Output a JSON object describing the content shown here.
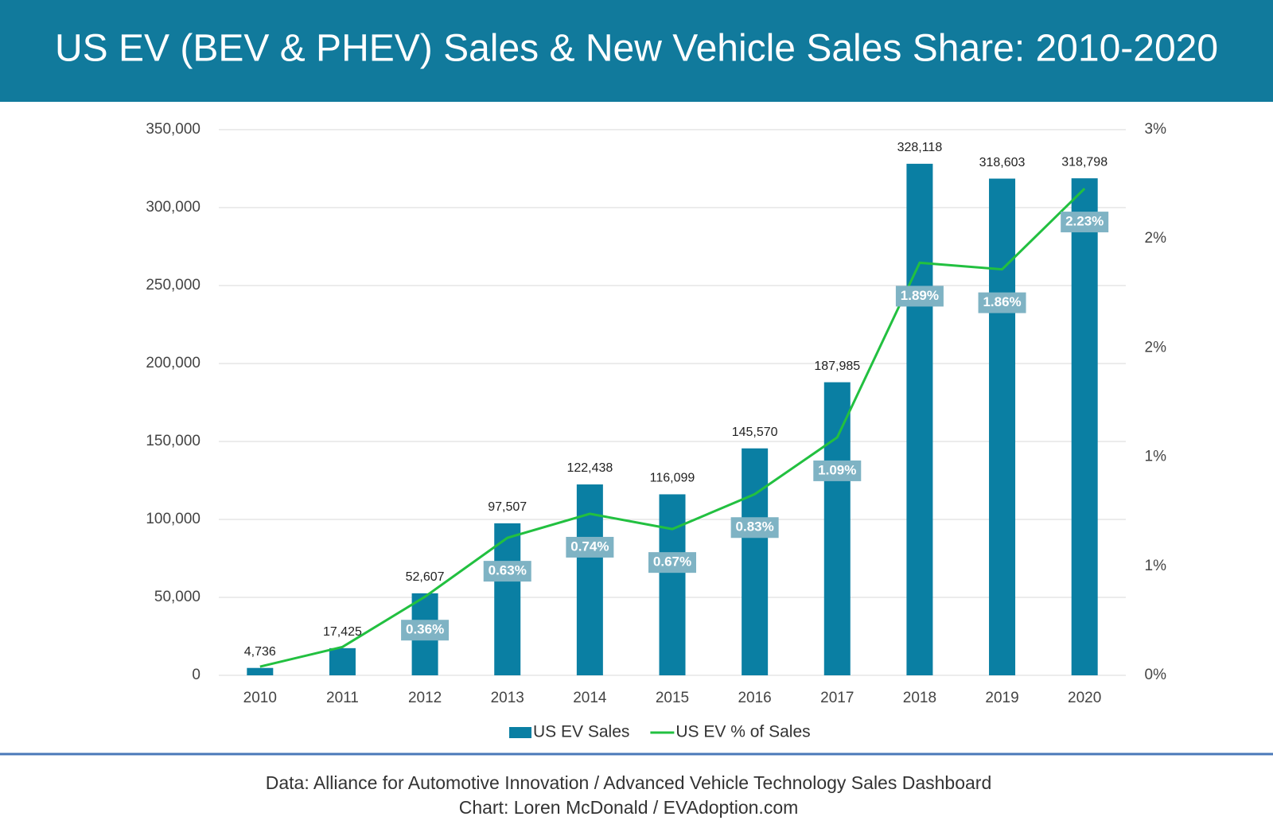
{
  "chart_data": {
    "type": "bar",
    "title": "US EV (BEV & PHEV) Sales & New Vehicle Sales Share: 2010-2020",
    "categories": [
      "2010",
      "2011",
      "2012",
      "2013",
      "2014",
      "2015",
      "2016",
      "2017",
      "2018",
      "2019",
      "2020"
    ],
    "series": [
      {
        "name": "US EV Sales",
        "type": "bar",
        "color": "#0a7fa3",
        "values": [
          4736,
          17425,
          52607,
          97507,
          122438,
          116099,
          145570,
          187985,
          328118,
          318603,
          318798
        ],
        "value_labels": [
          "4,736",
          "17,425",
          "52,607",
          "97,507",
          "122,438",
          "116,099",
          "145,570",
          "187,985",
          "328,118",
          "318,603",
          "318,798"
        ]
      },
      {
        "name": "US EV % of Sales",
        "type": "line",
        "axis": "y2",
        "color": "#22c040",
        "values": [
          0.04,
          0.13,
          0.36,
          0.63,
          0.74,
          0.67,
          0.83,
          1.09,
          1.89,
          1.86,
          2.23
        ],
        "value_labels": [
          null,
          null,
          "0.36%",
          "0.63%",
          "0.74%",
          "0.67%",
          "0.83%",
          "1.09%",
          "1.89%",
          "1.86%",
          "2.23%"
        ]
      }
    ],
    "ylim": [
      0,
      350000
    ],
    "yticks": [
      0,
      {
        "value": 50000,
        "label": "50,000"
      },
      {
        "value": 100000,
        "label": "100,000"
      },
      {
        "value": 150000,
        "label": "150,000"
      },
      {
        "value": 200000,
        "label": "200,000"
      },
      {
        "value": 250000,
        "label": "250,000"
      },
      {
        "value": 300000,
        "label": "300,000"
      },
      {
        "value": 350000,
        "label": "350,000"
      }
    ],
    "y2lim": [
      0,
      2.5
    ],
    "y2ticks": [
      {
        "value": 0,
        "label": "0%"
      },
      {
        "value": 0.5,
        "label": "1%"
      },
      {
        "value": 1,
        "label": "1%"
      },
      {
        "value": 1.5,
        "label": "2%"
      },
      {
        "value": 2,
        "label": "2%"
      },
      {
        "value": 2.5,
        "label": "3%"
      }
    ],
    "grid": true,
    "legend": "bottom",
    "footer": [
      "Data: Alliance for Automotive Innovation / Advanced Vehicle Technology Sales Dashboard",
      "Chart: Loren McDonald / EVAdoption.com"
    ]
  }
}
